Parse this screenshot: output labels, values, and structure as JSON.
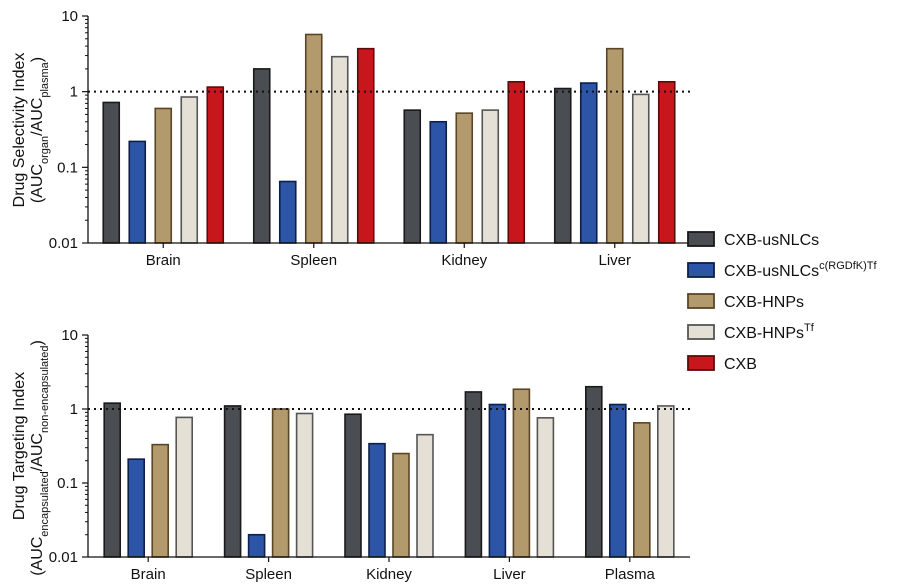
{
  "chart_data": [
    {
      "type": "bar",
      "y_scale": "log",
      "ylim": [
        0.01,
        10
      ],
      "ytick_labels": [
        "10",
        "1",
        "0.1",
        "0.01"
      ],
      "reference_line": 1,
      "ylabel": {
        "line1": "Drug Selectivity Index",
        "line2_pre": "(AUC",
        "line2_sub1": "organ",
        "line2_mid": "/AUC",
        "line2_sub2": "plasma",
        "line2_post": ")"
      },
      "categories": [
        "Brain",
        "Spleen",
        "Kidney",
        "Liver"
      ],
      "series": [
        {
          "name": "CXB-usNLCs",
          "values": [
            0.72,
            2.0,
            0.57,
            1.1
          ]
        },
        {
          "name": "CXB-usNLCs c(RGDfK)Tf",
          "values": [
            0.22,
            0.065,
            0.4,
            1.3
          ]
        },
        {
          "name": "CXB-HNPs",
          "values": [
            0.6,
            5.7,
            0.52,
            3.7
          ]
        },
        {
          "name": "CXB-HNPs Tf",
          "values": [
            0.85,
            2.9,
            0.57,
            0.92
          ]
        },
        {
          "name": "CXB",
          "values": [
            1.15,
            3.7,
            1.35,
            1.35
          ]
        }
      ]
    },
    {
      "type": "bar",
      "y_scale": "log",
      "ylim": [
        0.01,
        10
      ],
      "ytick_labels": [
        "10",
        "1",
        "0.1",
        "0.01"
      ],
      "reference_line": 1,
      "ylabel": {
        "line1": "Drug Targeting Index",
        "line2_pre": "(AUC",
        "line2_sub1": "encapsulated",
        "line2_mid": "/AUC",
        "line2_sub2": "non-encapsulated",
        "line2_post": ")"
      },
      "categories": [
        "Brain",
        "Spleen",
        "Kidney",
        "Liver",
        "Plasma"
      ],
      "series": [
        {
          "name": "CXB-usNLCs",
          "values": [
            1.2,
            1.1,
            0.85,
            1.7,
            2.0
          ]
        },
        {
          "name": "CXB-usNLCs c(RGDfK)Tf",
          "values": [
            0.21,
            0.02,
            0.34,
            1.15,
            1.15
          ]
        },
        {
          "name": "CXB-HNPs",
          "values": [
            0.33,
            1.0,
            0.25,
            1.85,
            0.65
          ]
        },
        {
          "name": "CXB-HNPs Tf",
          "values": [
            0.77,
            0.87,
            0.45,
            0.76,
            1.1
          ]
        }
      ]
    }
  ],
  "legend": {
    "placement": "right",
    "items": [
      {
        "label": "CXB-usNLCs",
        "sup": "",
        "fill": "#4a4d52",
        "stroke": "#1a1a1a"
      },
      {
        "label": "CXB-usNLCs",
        "sup": "c(RGDfK)Tf",
        "fill": "#2c55a8",
        "stroke": "#0d1f4a"
      },
      {
        "label": "CXB-HNPs",
        "sup": "",
        "fill": "#b39a6d",
        "stroke": "#5a4526"
      },
      {
        "label": "CXB-HNPs",
        "sup": "Tf",
        "fill": "#e4e0d6",
        "stroke": "#555555"
      },
      {
        "label": "CXB",
        "sup": "",
        "fill": "#c8161d",
        "stroke": "#5e0a0c"
      }
    ]
  }
}
